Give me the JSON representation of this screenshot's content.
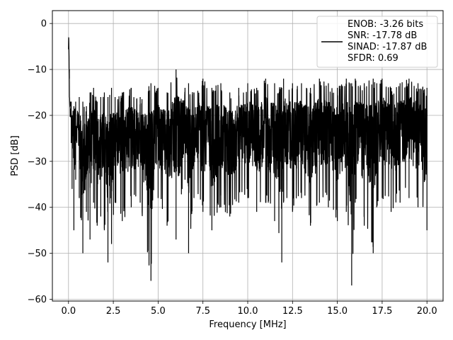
{
  "chart_data": {
    "type": "line",
    "xlabel": "Frequency [MHz]",
    "ylabel": "PSD [dB]",
    "xlim": [
      -0.9,
      20.9
    ],
    "ylim": [
      -60.4,
      2.8
    ],
    "xticks": [
      0.0,
      2.5,
      5.0,
      7.5,
      10.0,
      12.5,
      15.0,
      17.5,
      20.0
    ],
    "xtick_labels": [
      "0.0",
      "2.5",
      "5.0",
      "7.5",
      "10.0",
      "12.5",
      "15.0",
      "17.5",
      "20.0"
    ],
    "yticks": [
      0,
      -10,
      -20,
      -30,
      -40,
      -50,
      -60
    ],
    "ytick_labels": [
      "0",
      "−10",
      "−20",
      "−30",
      "−40",
      "−50",
      "−60"
    ],
    "grid": true,
    "legend_position": "top-right",
    "legend_lines": [
      "ENOB: -3.26 bits",
      "SNR: -17.78 dB",
      "SINAD: -17.87 dB",
      "SFDR: 0.69"
    ],
    "series": [
      {
        "color": "#000000",
        "x": [
          0.0,
          0.02,
          0.05,
          0.1,
          0.15,
          0.2,
          0.25,
          0.3,
          0.4,
          0.5,
          0.6,
          0.8,
          1.0,
          1.2,
          1.4,
          1.6,
          1.8,
          2.0,
          2.2,
          2.4,
          2.6,
          3.0,
          3.5,
          4.0,
          4.6,
          5.0,
          5.5,
          6.0,
          6.5,
          6.7,
          7.0,
          7.5,
          8.0,
          8.5,
          9.0,
          9.5,
          10.0,
          10.5,
          11.0,
          11.5,
          11.9,
          12.0,
          12.5,
          13.0,
          13.5,
          14.0,
          14.5,
          15.0,
          15.5,
          15.8,
          16.0,
          16.5,
          17.0,
          17.2,
          17.5,
          18.0,
          18.5,
          19.0,
          19.5,
          20.0
        ],
        "y": [
          -3,
          0,
          -10,
          -17,
          -26,
          -36,
          -23,
          -45,
          -34,
          -22,
          -38,
          -50,
          -41,
          -47,
          -39,
          -44,
          -42,
          -45,
          -52,
          -48,
          -39,
          -43,
          -40,
          -39,
          -56,
          -38,
          -44,
          -47,
          -34,
          -50,
          -38,
          -41,
          -45,
          -40,
          -42,
          -39,
          -38,
          -41,
          -39,
          -43,
          -52,
          -39,
          -41,
          -38,
          -44,
          -39,
          -40,
          -43,
          -41,
          -57,
          -39,
          -44,
          -50,
          -40,
          -38,
          -41,
          -39,
          -38,
          -40,
          -45
        ],
        "upper": [
          -3,
          0,
          -12,
          -18,
          -17,
          -20,
          -19,
          -18,
          -17,
          -19,
          -16,
          -17,
          -18,
          -15,
          -14,
          -17,
          -16,
          -15,
          -16,
          -14,
          -16,
          -15,
          -14,
          -16,
          -13,
          -14,
          -15,
          -10,
          -14,
          -13,
          -15,
          -12,
          -14,
          -13,
          -15,
          -14,
          -13,
          -14,
          -12,
          -13,
          -14,
          -12,
          -13,
          -13,
          -14,
          -12,
          -13,
          -14,
          -12,
          -13,
          -12,
          -13,
          -12,
          -13,
          -12,
          -14,
          -13,
          -12,
          -13,
          -14
        ]
      }
    ]
  }
}
